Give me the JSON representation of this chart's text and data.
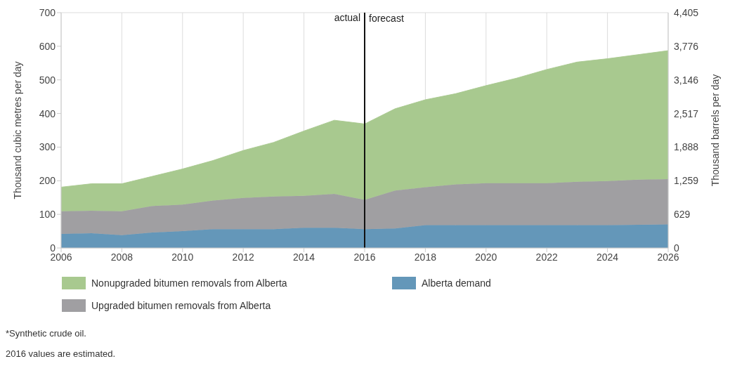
{
  "chart_data": {
    "type": "area",
    "stacked": true,
    "ylabel": "Thousand cubic metres per day",
    "y2label": "Thousand barrels per day",
    "x": [
      2006,
      2007,
      2008,
      2009,
      2010,
      2011,
      2012,
      2013,
      2014,
      2015,
      2016,
      2017,
      2018,
      2019,
      2020,
      2021,
      2022,
      2023,
      2024,
      2025,
      2026
    ],
    "series": [
      {
        "name": "Alberta demand",
        "color": "#6497b9",
        "values": [
          42,
          44,
          38,
          46,
          50,
          56,
          56,
          56,
          60,
          60,
          56,
          58,
          68,
          68,
          68,
          68,
          68,
          68,
          68,
          69,
          70
        ]
      },
      {
        "name": "Upgraded bitumen removals from Alberta",
        "color": "#a09fa2",
        "values": [
          67,
          67,
          71,
          79,
          79,
          85,
          93,
          97,
          95,
          101,
          87,
          113,
          113,
          121,
          125,
          125,
          125,
          129,
          131,
          134,
          135
        ]
      },
      {
        "name": "Nonupgraded bitumen removals from Alberta",
        "color": "#a8c98f",
        "values": [
          72,
          80,
          82,
          88,
          106,
          119,
          141,
          161,
          193,
          219,
          226,
          243,
          260,
          270,
          290,
          312,
          338,
          356,
          364,
          372,
          382
        ]
      }
    ],
    "xlim": [
      2006,
      2026
    ],
    "xticks": [
      2006,
      2008,
      2010,
      2012,
      2014,
      2016,
      2018,
      2020,
      2022,
      2024,
      2026
    ],
    "ylim": [
      0,
      700
    ],
    "yticks": [
      0,
      100,
      200,
      300,
      400,
      500,
      600,
      700
    ],
    "y2lim": [
      0,
      4405
    ],
    "y2ticks": [
      0,
      629,
      {
        "value": 1259,
        "label": "1,259"
      },
      {
        "value": 1888,
        "label": "1,888"
      },
      {
        "value": 2517,
        "label": "2,517"
      },
      {
        "value": 3146,
        "label": "3,146"
      },
      {
        "value": 3776,
        "label": "3,776"
      },
      {
        "value": 4405,
        "label": "4,405"
      }
    ],
    "grid": true,
    "legend": "bottom",
    "ref_lines": [
      {
        "axis": "x",
        "value": 2016,
        "label": "actual",
        "color": "#111111"
      }
    ],
    "annotations": [
      {
        "text": "forecast",
        "x": 2016,
        "y": 700
      },
      "*Synthetic crude oil.",
      "2016 values are estimated."
    ]
  }
}
